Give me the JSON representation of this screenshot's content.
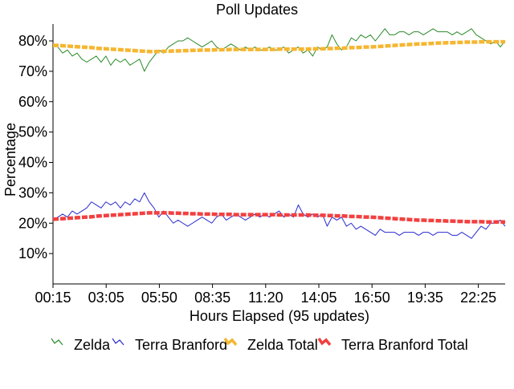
{
  "chart_data": {
    "type": "line",
    "title": "Poll Updates",
    "xlabel": "Hours Elapsed (95 updates)",
    "ylabel": "Percentage",
    "x_ticks": [
      "00:15",
      "03:05",
      "05:50",
      "08:35",
      "11:20",
      "14:05",
      "16:50",
      "19:35",
      "22:25"
    ],
    "y_ticks": [
      {
        "value": 10,
        "label": "10%"
      },
      {
        "value": 20,
        "label": "20%"
      },
      {
        "value": 30,
        "label": "30%"
      },
      {
        "value": 40,
        "label": "40%"
      },
      {
        "value": 50,
        "label": "50%"
      },
      {
        "value": 60,
        "label": "60%"
      },
      {
        "value": 70,
        "label": "70%"
      },
      {
        "value": 80,
        "label": "80%"
      }
    ],
    "ylim": [
      0,
      85
    ],
    "n_points": 95,
    "legend_position": "bottom",
    "series": [
      {
        "name": "Zelda",
        "color": "#2a8a2a",
        "style": "thin",
        "values": [
          79,
          78,
          76,
          77,
          75,
          76,
          74,
          73,
          74,
          75,
          73,
          75,
          72,
          74,
          73,
          74,
          72,
          73,
          74,
          70,
          73,
          75,
          77,
          76,
          78,
          79,
          80,
          80,
          81,
          80,
          79,
          78,
          79,
          80,
          78,
          77,
          78,
          79,
          78,
          77,
          78,
          77,
          78,
          77,
          77,
          78,
          77,
          77,
          78,
          76,
          77,
          78,
          76,
          77,
          75,
          78,
          77,
          78,
          82,
          79,
          77,
          78,
          81,
          80,
          82,
          81,
          82,
          80,
          82,
          84,
          82,
          82,
          83,
          83,
          82,
          83,
          83,
          82,
          83,
          84,
          83,
          83,
          83,
          82,
          83,
          82,
          83,
          84,
          82,
          81,
          80,
          79,
          80,
          78,
          80
        ]
      },
      {
        "name": "Terra Branford",
        "color": "#2a2ad0",
        "style": "thin",
        "values": [
          21,
          22,
          23,
          22,
          24,
          23,
          24,
          25,
          27,
          26,
          25,
          27,
          26,
          27,
          25,
          27,
          26,
          28,
          27,
          30,
          27,
          25,
          22,
          24,
          22,
          20,
          21,
          20,
          19,
          20,
          21,
          22,
          21,
          20,
          22,
          23,
          21,
          22,
          23,
          22,
          21,
          22,
          23,
          22,
          23,
          22,
          23,
          24,
          22,
          23,
          22,
          26,
          23,
          22,
          23,
          22,
          23,
          19,
          22,
          21,
          22,
          19,
          20,
          18,
          19,
          18,
          17,
          16,
          18,
          17,
          17,
          17,
          16,
          17,
          17,
          17,
          16,
          17,
          17,
          16,
          17,
          17,
          17,
          16,
          16,
          17,
          16,
          15,
          17,
          19,
          18,
          20,
          20,
          21,
          19
        ]
      },
      {
        "name": "Zelda Total",
        "color": "#f5b630",
        "style": "thick",
        "values": [
          78.5,
          78.5,
          78.4,
          78.3,
          78.2,
          78.1,
          78,
          77.9,
          77.8,
          77.6,
          77.5,
          77.4,
          77.3,
          77.2,
          77.1,
          77,
          76.9,
          76.8,
          76.7,
          76.6,
          76.5,
          76.5,
          76.5,
          76.6,
          76.6,
          76.7,
          76.7,
          76.8,
          76.8,
          76.9,
          76.9,
          77,
          77,
          77,
          77.1,
          77.1,
          77.1,
          77.2,
          77.2,
          77.2,
          77.2,
          77.2,
          77.2,
          77.2,
          77.2,
          77.2,
          77.2,
          77.3,
          77.3,
          77.3,
          77.3,
          77.3,
          77.3,
          77.3,
          77.4,
          77.4,
          77.4,
          77.5,
          77.5,
          77.6,
          77.6,
          77.7,
          77.8,
          77.8,
          77.9,
          78,
          78,
          78.1,
          78.2,
          78.3,
          78.4,
          78.5,
          78.6,
          78.7,
          78.8,
          78.9,
          79,
          79,
          79.1,
          79.2,
          79.3,
          79.3,
          79.4,
          79.4,
          79.5,
          79.5,
          79.6,
          79.6,
          79.6,
          79.7,
          79.7,
          79.7,
          79.7,
          79.7,
          79.7
        ]
      },
      {
        "name": "Terra Branford Total",
        "color": "#f24040",
        "style": "thick",
        "values": [
          21.3,
          21.4,
          21.5,
          21.6,
          21.7,
          21.8,
          21.9,
          22,
          22.1,
          22.3,
          22.4,
          22.5,
          22.6,
          22.7,
          22.8,
          22.9,
          23,
          23.1,
          23.2,
          23.3,
          23.4,
          23.4,
          23.4,
          23.4,
          23.4,
          23.3,
          23.3,
          23.2,
          23.2,
          23.1,
          23.1,
          23,
          23,
          23,
          22.9,
          22.9,
          22.9,
          22.9,
          22.8,
          22.8,
          22.8,
          22.8,
          22.8,
          22.8,
          22.8,
          22.8,
          22.8,
          22.7,
          22.7,
          22.7,
          22.7,
          22.7,
          22.7,
          22.7,
          22.6,
          22.6,
          22.6,
          22.5,
          22.5,
          22.4,
          22.4,
          22.3,
          22.2,
          22.2,
          22.1,
          22,
          22,
          21.9,
          21.8,
          21.7,
          21.6,
          21.5,
          21.4,
          21.3,
          21.2,
          21.1,
          21,
          21,
          20.9,
          20.9,
          20.8,
          20.8,
          20.7,
          20.7,
          20.6,
          20.6,
          20.5,
          20.5,
          20.5,
          20.5,
          20.4,
          20.4,
          20.4,
          20.4,
          20.4
        ]
      }
    ]
  }
}
